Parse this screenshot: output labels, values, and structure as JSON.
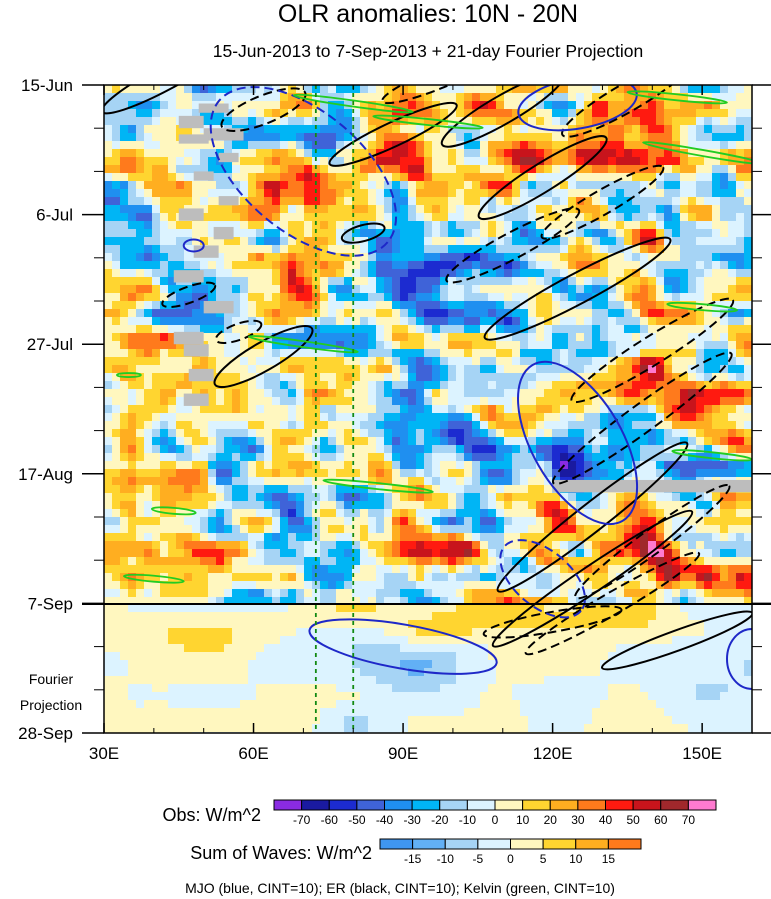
{
  "chart_data": {
    "type": "heatmap",
    "title": "OLR anomalies: 10N - 20N",
    "subtitle": "15-Jun-2013 to 7-Sep-2013 + 21-day Fourier Projection",
    "xlabel": "",
    "ylabel": "",
    "x_range_deg": [
      30,
      160
    ],
    "x_ticks": [
      {
        "label": "30E",
        "value": 30
      },
      {
        "label": "60E",
        "value": 60
      },
      {
        "label": "90E",
        "value": 90
      },
      {
        "label": "120E",
        "value": 120
      },
      {
        "label": "150E",
        "value": 150
      }
    ],
    "y_ticks": [
      {
        "label": "15-Jun",
        "day": 0
      },
      {
        "label": "6-Jul",
        "day": 21
      },
      {
        "label": "27-Jul",
        "day": 42
      },
      {
        "label": "17-Aug",
        "day": 63
      },
      {
        "label": "7-Sep",
        "day": 84
      },
      {
        "label": "28-Sep",
        "day": 105
      }
    ],
    "projection_start_day": 84,
    "projection_label": [
      "Fourier",
      "Projection"
    ],
    "reference_longitudes": [
      72.5,
      80
    ],
    "obs_colorbar": {
      "label": "Obs: W/m^2",
      "levels": [
        "-70",
        "-60",
        "-50",
        "-40",
        "-30",
        "-20",
        "-10",
        "0",
        "10",
        "20",
        "30",
        "40",
        "50",
        "60",
        "70"
      ],
      "colors": [
        "#8a2be2",
        "#1a1aa0",
        "#1c2bd0",
        "#3f63d8",
        "#1f8ff0",
        "#00b5f5",
        "#a6d4f5",
        "#dcf3ff",
        "#fff7bf",
        "#ffd530",
        "#ffae20",
        "#ff7a1c",
        "#ff1a10",
        "#c8141c",
        "#a0282c",
        "#ff7ad0"
      ]
    },
    "waves_colorbar": {
      "label": "Sum of Waves: W/m^2",
      "levels": [
        "-15",
        "-10",
        "-5",
        "0",
        "5",
        "10",
        "15"
      ],
      "colors": [
        "#3f96f0",
        "#62b0f5",
        "#a6d4f5",
        "#dcf3ff",
        "#fff7bf",
        "#ffd530",
        "#ffae20",
        "#ff7a1c"
      ]
    },
    "contour_legend": "MJO (blue, CINT=10); ER (black, CINT=10); Kelvin (green, CINT=10)",
    "wave_contours": {
      "MJO": {
        "color": "#1e28c8",
        "cint": 10
      },
      "ER": {
        "color": "#000000",
        "cint": 10
      },
      "Kelvin": {
        "color": "#22cc22",
        "cint": 10
      }
    },
    "missing_data_color": "#bdbdbd"
  }
}
